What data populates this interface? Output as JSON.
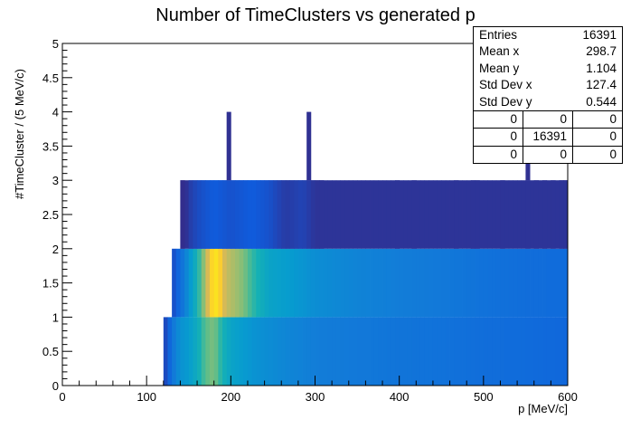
{
  "chart_data": {
    "type": "heatmap",
    "title": "Number of TimeClusters vs generated p",
    "xlabel": "p [MeV/c]",
    "ylabel": "#TimeCluster / (5 MeV/c)",
    "xlim": [
      0,
      600
    ],
    "ylim": [
      0,
      5
    ],
    "x_ticks": [
      "0",
      "100",
      "200",
      "300",
      "400",
      "500",
      "600"
    ],
    "y_ticks": [
      "0",
      "0.5",
      "1",
      "1.5",
      "2",
      "2.5",
      "3",
      "3.5",
      "4",
      "4.5",
      "5"
    ],
    "grid": false,
    "colormap": "kBird",
    "rows": [
      {
        "y_range": [
          0,
          1
        ],
        "x_start": 120,
        "x_end": 600,
        "intensity": [
          {
            "x": 120,
            "i": 0.05
          },
          {
            "x": 130,
            "i": 0.25
          },
          {
            "x": 140,
            "i": 0.4
          },
          {
            "x": 150,
            "i": 0.45
          },
          {
            "x": 160,
            "i": 0.55
          },
          {
            "x": 170,
            "i": 0.7
          },
          {
            "x": 180,
            "i": 0.75
          },
          {
            "x": 190,
            "i": 0.6
          },
          {
            "x": 200,
            "i": 0.5
          },
          {
            "x": 215,
            "i": 0.45
          },
          {
            "x": 230,
            "i": 0.4
          },
          {
            "x": 260,
            "i": 0.35
          },
          {
            "x": 300,
            "i": 0.3
          },
          {
            "x": 350,
            "i": 0.28
          },
          {
            "x": 400,
            "i": 0.26
          },
          {
            "x": 450,
            "i": 0.25
          },
          {
            "x": 500,
            "i": 0.23
          },
          {
            "x": 550,
            "i": 0.22
          },
          {
            "x": 600,
            "i": 0.2
          }
        ]
      },
      {
        "y_range": [
          1,
          2
        ],
        "x_start": 130,
        "x_end": 600,
        "intensity": [
          {
            "x": 130,
            "i": 0.08
          },
          {
            "x": 145,
            "i": 0.3
          },
          {
            "x": 155,
            "i": 0.5
          },
          {
            "x": 165,
            "i": 0.7
          },
          {
            "x": 175,
            "i": 0.95
          },
          {
            "x": 185,
            "i": 0.98
          },
          {
            "x": 195,
            "i": 0.85
          },
          {
            "x": 205,
            "i": 0.8
          },
          {
            "x": 215,
            "i": 0.75
          },
          {
            "x": 225,
            "i": 0.65
          },
          {
            "x": 245,
            "i": 0.5
          },
          {
            "x": 270,
            "i": 0.45
          },
          {
            "x": 300,
            "i": 0.38
          },
          {
            "x": 350,
            "i": 0.33
          },
          {
            "x": 400,
            "i": 0.3
          },
          {
            "x": 450,
            "i": 0.28
          },
          {
            "x": 500,
            "i": 0.25
          },
          {
            "x": 550,
            "i": 0.23
          },
          {
            "x": 600,
            "i": 0.22
          }
        ]
      },
      {
        "y_range": [
          2,
          3
        ],
        "x_start": 140,
        "x_end": 600,
        "intensity": [
          {
            "x": 140,
            "i": 0.02
          },
          {
            "x": 145,
            "i": 0.0
          },
          {
            "x": 150,
            "i": 0.05
          },
          {
            "x": 160,
            "i": 0.1
          },
          {
            "x": 180,
            "i": 0.15
          },
          {
            "x": 200,
            "i": 0.12
          },
          {
            "x": 225,
            "i": 0.15
          },
          {
            "x": 245,
            "i": 0.12
          },
          {
            "x": 265,
            "i": 0.05
          },
          {
            "x": 285,
            "i": 0.08
          },
          {
            "x": 300,
            "i": 0.03
          }
        ],
        "bars": [
          140,
          150,
          155,
          160,
          165,
          170,
          175,
          180,
          185,
          190,
          195,
          200,
          205,
          210,
          215,
          220,
          225,
          230,
          235,
          240,
          245,
          250,
          255,
          260,
          265,
          270,
          275,
          280,
          285,
          290,
          295,
          300,
          305,
          395,
          415,
          465,
          485,
          490,
          520,
          550,
          560,
          570,
          580,
          590,
          595
        ]
      },
      {
        "y_range": [
          3,
          4
        ],
        "bars": [
          195,
          290,
          550
        ]
      }
    ]
  },
  "stats": {
    "entries_label": "Entries",
    "entries_value": "16391",
    "meanx_label": "Mean x",
    "meanx_value": "298.7",
    "meany_label": "Mean y",
    "meany_value": "1.104",
    "stdx_label": "Std Dev x",
    "stdx_value": "127.4",
    "stdy_label": "Std Dev y",
    "stdy_value": "0.544",
    "grid": [
      [
        "0",
        "0",
        "0"
      ],
      [
        "0",
        "16391",
        "0"
      ],
      [
        "0",
        "0",
        "0"
      ]
    ]
  }
}
